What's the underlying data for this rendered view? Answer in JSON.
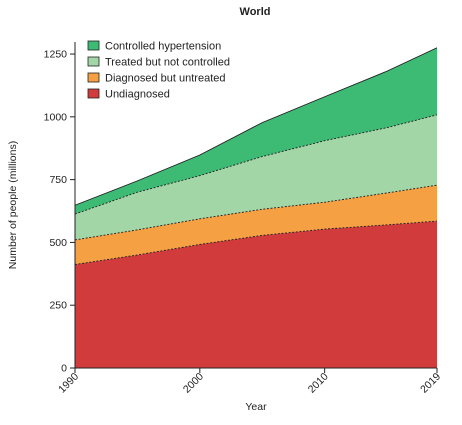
{
  "chart_data": {
    "type": "area",
    "stacked": true,
    "title": "World",
    "xlabel": "Year",
    "ylabel": "Number of people (millions)",
    "x": [
      1990,
      1995,
      2000,
      2005,
      2010,
      2015,
      2019
    ],
    "xticks": [
      1990,
      2000,
      2010,
      2019
    ],
    "yticks": [
      0,
      250,
      500,
      750,
      1000,
      1250
    ],
    "xlim": [
      1990,
      2019
    ],
    "ylim": [
      0,
      1290
    ],
    "grid": false,
    "legend_position": "top-left",
    "series": [
      {
        "name": "Undiagnosed",
        "color": "#d23b3b",
        "values": [
          412,
          450,
          492,
          528,
          553,
          570,
          585
        ]
      },
      {
        "name": "Diagnosed but untreated",
        "color": "#f6a044",
        "values": [
          98,
          100,
          102,
          104,
          107,
          127,
          143
        ]
      },
      {
        "name": "Treated but not controlled",
        "color": "#a3d6a6",
        "values": [
          103,
          150,
          172,
          210,
          245,
          260,
          280
        ]
      },
      {
        "name": "Controlled hypertension",
        "color": "#3dbb74",
        "values": [
          35,
          45,
          82,
          135,
          175,
          225,
          267
        ]
      }
    ]
  }
}
